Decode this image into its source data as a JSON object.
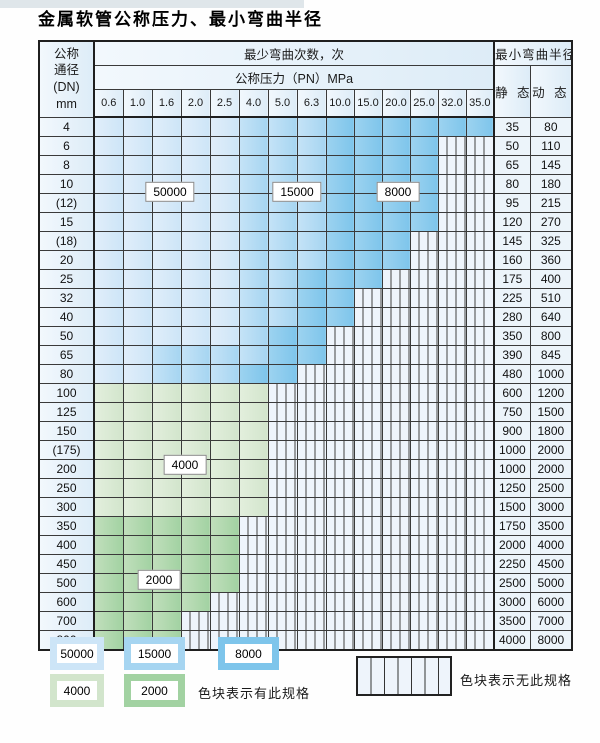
{
  "title": "金属软管公称压力、最小弯曲半径",
  "table": {
    "col1_header_lines": [
      "公称",
      "通径",
      "(DN)",
      "mm"
    ],
    "bend_cycles_header": "最少弯曲次数，次",
    "pressure_header": "公称压力（PN）MPa",
    "pressure_columns": [
      "0.6",
      "1.0",
      "1.6",
      "2.0",
      "2.5",
      "4.0",
      "5.0",
      "6.3",
      "10.0",
      "15.0",
      "20.0",
      "25.0",
      "32.0",
      "35.0"
    ],
    "radius_header": "最小弯曲半径",
    "static_header": "静 态",
    "dynamic_header": "动 态",
    "cycle_codes": {
      "1": "50000",
      "2": "15000",
      "3": "8000",
      "4": "4000",
      "5": "2000",
      "0": "无此规格"
    },
    "overlay_labels": [
      {
        "id": "label-50000",
        "text": "50000"
      },
      {
        "id": "label-15000",
        "text": "15000"
      },
      {
        "id": "label-8000",
        "text": "8000"
      },
      {
        "id": "label-4000",
        "text": "4000"
      },
      {
        "id": "label-2000",
        "text": "2000"
      }
    ],
    "rows": [
      {
        "dn": "4",
        "cells": "11111222333333",
        "static": "35",
        "dynamic": "80"
      },
      {
        "dn": "6",
        "cells": "11111222333300",
        "static": "50",
        "dynamic": "110"
      },
      {
        "dn": "8",
        "cells": "11111222333300",
        "static": "65",
        "dynamic": "145"
      },
      {
        "dn": "10",
        "cells": "11111222333300",
        "static": "80",
        "dynamic": "180"
      },
      {
        "dn": "(12)",
        "cells": "11111222333300",
        "static": "95",
        "dynamic": "215"
      },
      {
        "dn": "15",
        "cells": "11111222333300",
        "static": "120",
        "dynamic": "270"
      },
      {
        "dn": "(18)",
        "cells": "11111222333000",
        "static": "145",
        "dynamic": "325"
      },
      {
        "dn": "20",
        "cells": "11111222333000",
        "static": "160",
        "dynamic": "360"
      },
      {
        "dn": "25",
        "cells": "11111223330000",
        "static": "175",
        "dynamic": "400"
      },
      {
        "dn": "32",
        "cells": "11111223300000",
        "static": "225",
        "dynamic": "510"
      },
      {
        "dn": "40",
        "cells": "11111223300000",
        "static": "280",
        "dynamic": "640"
      },
      {
        "dn": "50",
        "cells": "11111233000000",
        "static": "350",
        "dynamic": "800"
      },
      {
        "dn": "65",
        "cells": "11222233000000",
        "static": "390",
        "dynamic": "845"
      },
      {
        "dn": "80",
        "cells": "11222330000000",
        "static": "480",
        "dynamic": "1000"
      },
      {
        "dn": "100",
        "cells": "44444400000000",
        "static": "600",
        "dynamic": "1200"
      },
      {
        "dn": "125",
        "cells": "44444400000000",
        "static": "750",
        "dynamic": "1500"
      },
      {
        "dn": "150",
        "cells": "44444400000000",
        "static": "900",
        "dynamic": "1800"
      },
      {
        "dn": "(175)",
        "cells": "44444400000000",
        "static": "1000",
        "dynamic": "2000"
      },
      {
        "dn": "200",
        "cells": "44444400000000",
        "static": "1000",
        "dynamic": "2000"
      },
      {
        "dn": "250",
        "cells": "44444400000000",
        "static": "1250",
        "dynamic": "2500"
      },
      {
        "dn": "300",
        "cells": "44444400000000",
        "static": "1500",
        "dynamic": "3000"
      },
      {
        "dn": "350",
        "cells": "55555000000000",
        "static": "1750",
        "dynamic": "3500"
      },
      {
        "dn": "400",
        "cells": "55555000000000",
        "static": "2000",
        "dynamic": "4000"
      },
      {
        "dn": "450",
        "cells": "55555000000000",
        "static": "2250",
        "dynamic": "4500"
      },
      {
        "dn": "500",
        "cells": "55555000000000",
        "static": "2500",
        "dynamic": "5000"
      },
      {
        "dn": "600",
        "cells": "55550000000000",
        "static": "3000",
        "dynamic": "6000"
      },
      {
        "dn": "700",
        "cells": "55500000000000",
        "static": "3500",
        "dynamic": "7000"
      },
      {
        "dn": "800",
        "cells": "55500000000000",
        "static": "4000",
        "dynamic": "8000"
      }
    ]
  },
  "legend": {
    "items": [
      {
        "label": "50000",
        "color": "#cde5f7"
      },
      {
        "label": "15000",
        "color": "#a6d5f1"
      },
      {
        "label": "8000",
        "color": "#7ec5eb"
      },
      {
        "label": "4000",
        "color": "#d2e5cc"
      },
      {
        "label": "2000",
        "color": "#a2d2a2"
      }
    ],
    "has_spec_text": "色块表示有此规格",
    "no_spec_text": "色块表示无此规格"
  },
  "colors": {
    "blue_50000": "#cde5f7",
    "blue_50000_light": "#e1eefa",
    "blue_15000": "#a6d5f1",
    "blue_15000_light": "#c5e3f7",
    "blue_8000": "#7ec5eb",
    "blue_8000_light": "#9dd3f0",
    "green_4000": "#d2e5cc",
    "green_4000_light": "#e3efdd",
    "green_2000": "#a2d2a2",
    "green_2000_light": "#c1dfbc",
    "no_spec_bg": "#eef4fb",
    "stripe_line": "#424242",
    "header_bg": "#ddecf7",
    "header_bg_light": "#f2f8fd",
    "value_bg": "#ecf4fa",
    "grid_line": "#3a3a3a",
    "outer_border": "#1f1f1f"
  }
}
